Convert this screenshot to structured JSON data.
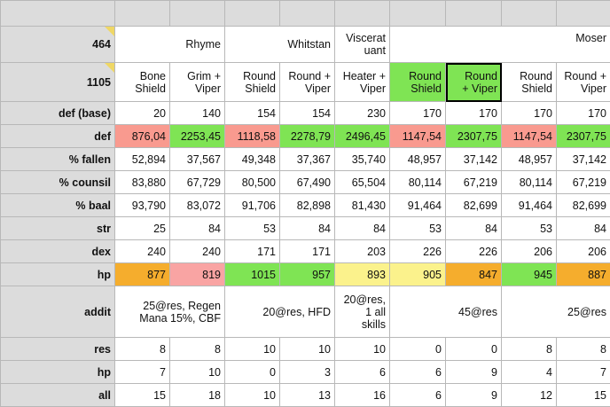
{
  "colors": {
    "header_gray": "#dcdcdc",
    "grid_line": "#b8b8b8",
    "red": "#f99a8f",
    "green": "#7fe454",
    "orange": "#f5ad2d",
    "pink": "#f9a4a3",
    "yellow": "#fbf28c",
    "comment_marker": "#efd765"
  },
  "labels": {
    "r1": "464",
    "r2": "1105",
    "def_base": "def (base)",
    "def": "def",
    "fallen": "% fallen",
    "counsil": "% counsil",
    "baal": "% baal",
    "str": "str",
    "dex": "dex",
    "hp": "hp",
    "addit": "addit",
    "res": "res",
    "hp2": "hp",
    "all": "all"
  },
  "names": {
    "rhyme": "Rhyme",
    "whitstan": "Whitstan",
    "viscerat": "Viscerat\nuant",
    "moser": "Moser"
  },
  "items": [
    "Bone\nShield",
    "Grim +\nViper",
    "Round\nShield",
    "Round +\nViper",
    "Heater +\nViper",
    "Round\nShield",
    "Round\n+ Viper",
    "Round\nShield",
    "Round +\nViper"
  ],
  "rows": {
    "def_base": [
      "20",
      "140",
      "154",
      "154",
      "230",
      "170",
      "170",
      "170",
      "170"
    ],
    "def": [
      "876,04",
      "2253,45",
      "1118,58",
      "2278,79",
      "2496,45",
      "1147,54",
      "2307,75",
      "1147,54",
      "2307,75"
    ],
    "fallen": [
      "52,894",
      "37,567",
      "49,348",
      "37,367",
      "35,740",
      "48,957",
      "37,142",
      "48,957",
      "37,142"
    ],
    "counsil": [
      "83,880",
      "67,729",
      "80,500",
      "67,490",
      "65,504",
      "80,114",
      "67,219",
      "80,114",
      "67,219"
    ],
    "baal": [
      "93,790",
      "83,072",
      "91,706",
      "82,898",
      "81,430",
      "91,464",
      "82,699",
      "91,464",
      "82,699"
    ],
    "str": [
      "25",
      "84",
      "53",
      "84",
      "84",
      "53",
      "84",
      "53",
      "84"
    ],
    "dex": [
      "240",
      "240",
      "171",
      "171",
      "203",
      "226",
      "226",
      "206",
      "206"
    ],
    "hp": [
      "877",
      "819",
      "1015",
      "957",
      "893",
      "905",
      "847",
      "945",
      "887"
    ],
    "res": [
      "8",
      "8",
      "10",
      "10",
      "10",
      "0",
      "0",
      "8",
      "8"
    ],
    "hp2": [
      "7",
      "10",
      "0",
      "3",
      "6",
      "6",
      "9",
      "4",
      "7"
    ],
    "all": [
      "15",
      "18",
      "10",
      "13",
      "16",
      "6",
      "9",
      "12",
      "15"
    ]
  },
  "addit": {
    "rhyme": "25@res, Regen\nMana 15%, CBF",
    "whitstan": "20@res, HFD",
    "viscerat": "20@res,\n1 all\nskills",
    "moser_a": "45@res",
    "moser_b": "25@res"
  }
}
